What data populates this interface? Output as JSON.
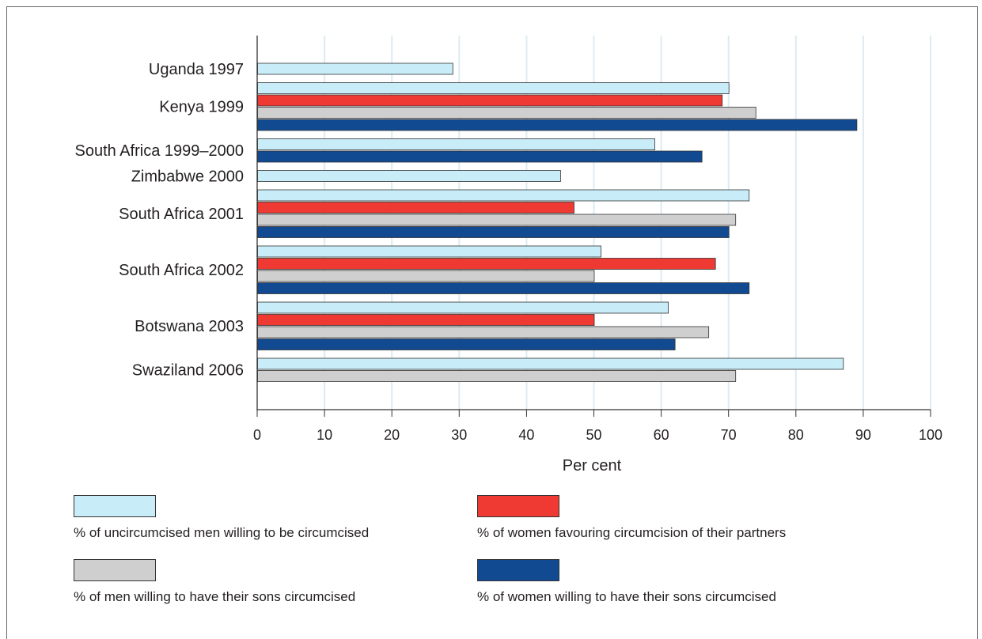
{
  "chart_data": {
    "type": "bar",
    "orientation": "horizontal",
    "xlabel": "Per cent",
    "xlim": [
      0,
      100
    ],
    "xticks": [
      "0",
      "10",
      "20",
      "30",
      "40",
      "50",
      "60",
      "70",
      "80",
      "90",
      "100"
    ],
    "grid": true,
    "legend_position": "bottom",
    "colors": {
      "men_willing": "#c8ecf8",
      "women_partners": "#ee3a33",
      "men_sons": "#cfcfcf",
      "women_sons": "#124a92"
    },
    "categories": [
      {
        "label": "Uganda 1997",
        "values": [
          {
            "series": "men_willing",
            "value": 29
          }
        ]
      },
      {
        "label": "Kenya 1999",
        "values": [
          {
            "series": "men_willing",
            "value": 70
          },
          {
            "series": "women_partners",
            "value": 69
          },
          {
            "series": "men_sons",
            "value": 74
          },
          {
            "series": "women_sons",
            "value": 89
          }
        ]
      },
      {
        "label": "South Africa 1999–2000",
        "values": [
          {
            "series": "men_willing",
            "value": 59
          },
          {
            "series": "women_sons",
            "value": 66
          }
        ]
      },
      {
        "label": "Zimbabwe 2000",
        "values": [
          {
            "series": "men_willing",
            "value": 45
          }
        ]
      },
      {
        "label": "South Africa 2001",
        "values": [
          {
            "series": "men_willing",
            "value": 73
          },
          {
            "series": "women_partners",
            "value": 47
          },
          {
            "series": "men_sons",
            "value": 71
          },
          {
            "series": "women_sons",
            "value": 70
          }
        ]
      },
      {
        "label": "South Africa 2002",
        "values": [
          {
            "series": "men_willing",
            "value": 51
          },
          {
            "series": "women_partners",
            "value": 68
          },
          {
            "series": "men_sons",
            "value": 50
          },
          {
            "series": "women_sons",
            "value": 73
          }
        ]
      },
      {
        "label": "Botswana 2003",
        "values": [
          {
            "series": "men_willing",
            "value": 61
          },
          {
            "series": "women_partners",
            "value": 50
          },
          {
            "series": "men_sons",
            "value": 67
          },
          {
            "series": "women_sons",
            "value": 62
          }
        ]
      },
      {
        "label": "Swaziland 2006",
        "values": [
          {
            "series": "men_willing",
            "value": 87
          },
          {
            "series": "men_sons",
            "value": 71
          }
        ]
      }
    ],
    "series": [
      {
        "id": "men_willing",
        "name": "% of uncircumcised men willing to be circumcised"
      },
      {
        "id": "women_partners",
        "name": "% of women favouring circumcision of their partners"
      },
      {
        "id": "men_sons",
        "name": "% of men willing to have their sons circumcised"
      },
      {
        "id": "women_sons",
        "name": "% of women willing to have their sons circumcised"
      }
    ]
  }
}
